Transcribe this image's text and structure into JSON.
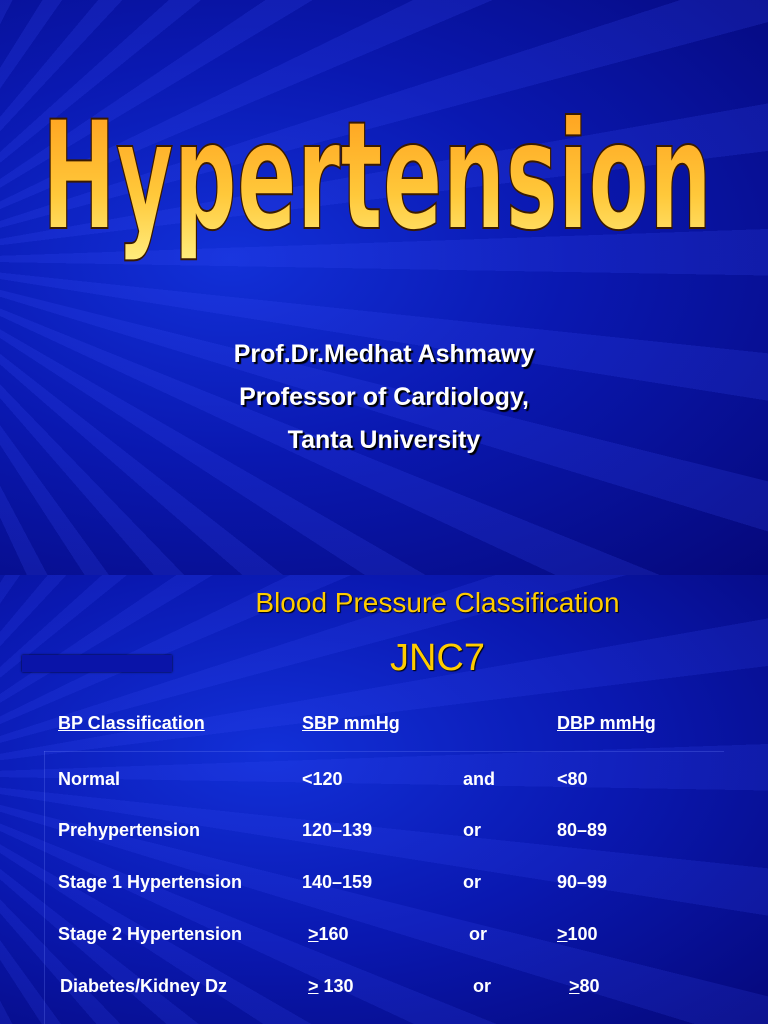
{
  "slides": [
    {
      "title": "Hypertension",
      "author": [
        "Prof.Dr.Medhat Ashmawy",
        "Professor of Cardiology,",
        "Tanta University"
      ]
    },
    {
      "title": "Blood Pressure Classification",
      "subtitle": "JNC7",
      "table": {
        "header": {
          "classification": "BP Classification",
          "sbp": "SBP mmHg",
          "dbp": "DBP mmHg"
        },
        "rows": [
          [
            "Normal",
            "<120",
            "and",
            "<80"
          ],
          [
            "Prehypertension",
            "120–139",
            "or",
            "80–89"
          ],
          [
            "Stage 1 Hypertension",
            "140–159",
            "or",
            "90–99"
          ],
          [
            "Stage 2 Hypertension",
            {
              "prefix": ">",
              "text": "160"
            },
            "or",
            {
              "prefix": ">",
              "text": "100"
            }
          ],
          [
            "Diabetes/Kidney Dz",
            {
              "prefix": ">",
              "text": "130"
            },
            "or",
            {
              "prefix": ">",
              "text": "80"
            }
          ]
        ]
      }
    }
  ]
}
